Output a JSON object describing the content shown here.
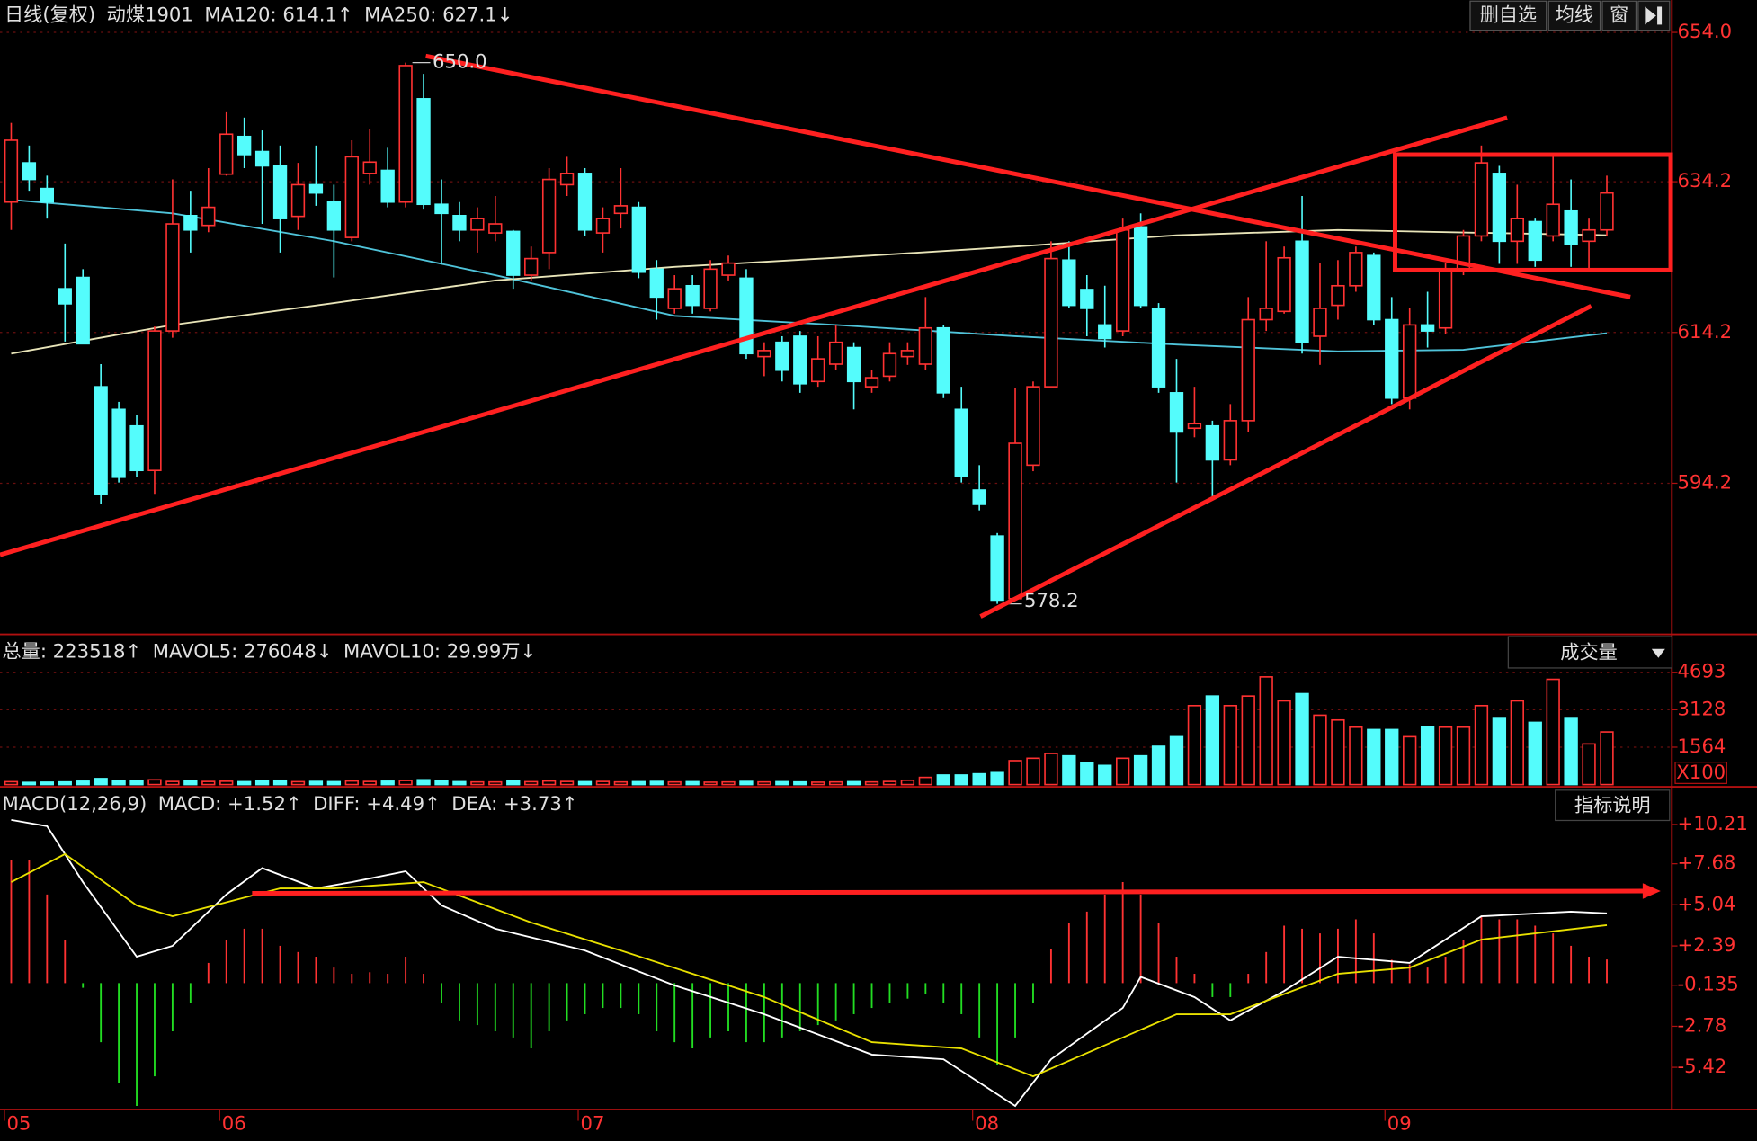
{
  "chart_data": [
    {
      "type": "candlestick",
      "title": "日线(复权)",
      "symbol": "动煤1901",
      "buttons": [
        "删自选",
        "均线",
        "窗"
      ],
      "up_color": "#ff3232",
      "down_color": "#54fcfc",
      "grid": true,
      "ylim": [
        574.6,
        658.3
      ],
      "yticks": [
        594.2,
        614.2,
        634.2,
        {
          "value": 654,
          "label": "654.0"
        }
      ],
      "high_label": "650.0",
      "low_label": "578.2",
      "categories": [
        "05",
        null,
        null,
        null,
        null,
        null,
        null,
        null,
        null,
        null,
        null,
        null,
        "06",
        null,
        null,
        null,
        null,
        null,
        null,
        null,
        null,
        null,
        null,
        null,
        null,
        null,
        null,
        null,
        null,
        null,
        null,
        null,
        "07",
        null,
        null,
        null,
        null,
        null,
        null,
        null,
        null,
        null,
        null,
        null,
        null,
        null,
        null,
        null,
        null,
        null,
        null,
        null,
        null,
        null,
        "08",
        null,
        null,
        null,
        null,
        null,
        null,
        null,
        null,
        null,
        null,
        null,
        null,
        null,
        null,
        null,
        null,
        null,
        null,
        null,
        null,
        null,
        null,
        "09",
        null,
        null,
        null,
        null,
        null,
        null,
        null,
        null,
        null,
        null,
        null,
        null
      ],
      "open": [
        631.5,
        636.7,
        633.3,
        620,
        621.5,
        607,
        604,
        601.8,
        595.9,
        614.4,
        629.7,
        628.4,
        635.2,
        640.2,
        638.2,
        636.3,
        629.6,
        633.8,
        631.5,
        626.8,
        635.3,
        635.7,
        631.5,
        645.2,
        631.2,
        629.7,
        627.8,
        627.4,
        627.6,
        621.8,
        624.8,
        633.8,
        635.3,
        627.4,
        630,
        630.8,
        622.6,
        617.4,
        620.4,
        617.4,
        621.8,
        621.4,
        611,
        612.9,
        613.7,
        607.7,
        610,
        612.2,
        607,
        608.4,
        611,
        610,
        614.8,
        604,
        593.3,
        587.2,
        578.9,
        596.6,
        607,
        623.8,
        619.9,
        615.2,
        614.4,
        628.2,
        617.4,
        606.2,
        601.5,
        601.8,
        597.3,
        602.5,
        615.9,
        617,
        626.3,
        613.7,
        617.8,
        620.4,
        624.4,
        615.9,
        605.5,
        615.2,
        614.8,
        622.6,
        627,
        635.3,
        626.3,
        628.9,
        627,
        630.3,
        626.3,
        627.8
      ],
      "high": [
        642,
        639,
        635,
        626,
        622.6,
        610,
        605,
        603.3,
        615,
        634.5,
        633,
        636,
        643.4,
        642.7,
        641,
        639,
        636.7,
        639,
        633.8,
        639.7,
        641.2,
        638.7,
        650.0,
        648.5,
        634.5,
        631.5,
        630.8,
        632.3,
        627.8,
        625.6,
        636,
        637.5,
        636,
        630.8,
        636,
        631.5,
        623.8,
        621.8,
        621.8,
        623.8,
        624.4,
        622.6,
        612.9,
        613.7,
        614.4,
        613.7,
        615.2,
        612.9,
        609.2,
        612.9,
        612.9,
        618.9,
        615.2,
        607,
        596.6,
        587.6,
        606.9,
        607.7,
        626.3,
        626.3,
        621.8,
        620.4,
        629.3,
        630,
        618.1,
        610.7,
        607,
        602.5,
        604.7,
        618.9,
        626.3,
        625.6,
        632.3,
        623.4,
        623.8,
        625.6,
        624.8,
        618.9,
        617.4,
        619.6,
        623.4,
        627.8,
        639,
        636.3,
        633.8,
        629.3,
        637.5,
        634.5,
        629.3,
        635
      ],
      "low": [
        627.8,
        633,
        629.3,
        613,
        612.7,
        591.4,
        594.3,
        595,
        592.8,
        613.5,
        624.8,
        627.5,
        635,
        636,
        628.6,
        624.8,
        627.8,
        631,
        621.5,
        626.3,
        633.8,
        630.8,
        630.8,
        630.5,
        623.3,
        626.3,
        624.8,
        626.3,
        620,
        621.1,
        622.6,
        632.3,
        627,
        624.8,
        628,
        621.4,
        615.9,
        616.7,
        616.7,
        617,
        621.1,
        610.7,
        608.4,
        607.7,
        606.2,
        607,
        609.2,
        604,
        606.2,
        607.7,
        609.9,
        609.2,
        605.5,
        594.3,
        590.6,
        578.2,
        578.7,
        595.8,
        607,
        617.4,
        613.7,
        612.2,
        613.7,
        617.4,
        606.2,
        594.3,
        600.3,
        592.1,
        596.6,
        601,
        614.4,
        616.7,
        611.4,
        609.9,
        615.9,
        619.6,
        615.2,
        604.7,
        604,
        612.2,
        614,
        621.8,
        626.3,
        623.3,
        623.3,
        622.9,
        626.3,
        622.9,
        622.6,
        627
      ],
      "close": [
        639.7,
        634.5,
        631.5,
        618,
        612.7,
        592.8,
        595,
        595.9,
        614.4,
        628.6,
        627.8,
        630.8,
        640.5,
        637.8,
        636.3,
        629.3,
        633.8,
        632.7,
        627.8,
        637.5,
        636.8,
        631.5,
        649.6,
        631.2,
        630,
        627.8,
        629.3,
        628.6,
        621.8,
        624,
        634.5,
        635.3,
        627.8,
        629.3,
        631,
        622.2,
        618.9,
        620,
        617.8,
        622.6,
        623.4,
        611.4,
        611.8,
        609.2,
        607.4,
        610.7,
        612.9,
        607.7,
        608.2,
        611.4,
        611.8,
        614.8,
        606.2,
        595.1,
        591.4,
        578.7,
        599.5,
        607,
        624,
        617.8,
        617.4,
        613.4,
        627.8,
        617.8,
        607,
        601,
        602.1,
        597.3,
        602.5,
        615.9,
        617.4,
        624.1,
        612.9,
        617.4,
        620.4,
        624.8,
        615.9,
        605.5,
        615.2,
        614.4,
        622.6,
        627,
        636.7,
        626.3,
        629.3,
        623.8,
        631.2,
        625.9,
        627.8,
        632.7
      ],
      "series": [
        {
          "name": "MA120: 614.1↑",
          "color": "#4fc3d9",
          "x": [
            0,
            9,
            18,
            27,
            37,
            46,
            56,
            65,
            74,
            81,
            89
          ],
          "values": [
            631.8,
            630,
            626.3,
            621.8,
            616.4,
            615.2,
            613.7,
            612.6,
            611.7,
            611.9,
            614.1
          ]
        },
        {
          "name": "MA250: 627.1↓",
          "color": "#e8e4b8",
          "x": [
            0,
            9,
            18,
            27,
            37,
            46,
            56,
            65,
            74,
            89
          ],
          "values": [
            611.4,
            615.2,
            618.1,
            621.1,
            622.9,
            624.1,
            625.6,
            627.1,
            627.8,
            627.1
          ]
        }
      ]
    },
    {
      "type": "bar",
      "up_color": "#ff3232",
      "down_color": "#54fcfc",
      "grid": true,
      "legend": [
        {
          "text": "总量: 223518↑",
          "color": "#ff3232"
        },
        {
          "text": "MAVOL5: 276048↓",
          "color": "#e8e000"
        },
        {
          "text": "MAVOL10: 29.99万↓",
          "color": "#ffffff"
        }
      ],
      "selector": "成交量",
      "unit_label": "X100",
      "ylim": [
        0,
        4920
      ],
      "yticks": [
        1564,
        3128,
        4693
      ],
      "values": [
        120,
        90,
        100,
        110,
        140,
        250,
        160,
        150,
        200,
        130,
        150,
        130,
        140,
        120,
        160,
        180,
        120,
        130,
        120,
        150,
        130,
        140,
        170,
        200,
        150,
        120,
        110,
        110,
        160,
        120,
        150,
        130,
        120,
        130,
        110,
        120,
        130,
        110,
        120,
        100,
        110,
        130,
        110,
        120,
        110,
        100,
        110,
        120,
        110,
        130,
        180,
        300,
        400,
        400,
        450,
        500,
        1000,
        1100,
        1300,
        1200,
        900,
        800,
        1100,
        1200,
        1600,
        2000,
        3300,
        3700,
        3300,
        3700,
        4500,
        3500,
        3800,
        2900,
        2700,
        2400,
        2300,
        2300,
        2000,
        2400,
        2400,
        2400,
        3300,
        2800,
        3500,
        2600,
        4400,
        2800,
        1700,
        2200
      ]
    },
    {
      "type": "macd",
      "up_color": "#ff3232",
      "down_color": "#22dd22",
      "grid": false,
      "legend": [
        {
          "text": "MACD(12,26,9)",
          "color": "#ffffff"
        },
        {
          "text": "MACD: +1.52↑",
          "color": "#ff3232"
        },
        {
          "text": "DIFF: +4.49↑",
          "color": "#ffffff"
        },
        {
          "text": "DEA: +3.73↑",
          "color": "#e8e000"
        }
      ],
      "button": "指标说明",
      "ylim": [
        -8.14,
        12.27
      ],
      "yticks": [
        -5.42,
        -2.78,
        -0.135,
        {
          "value": 2.39,
          "label": "+2.39"
        },
        {
          "value": 5.04,
          "label": "+5.04"
        },
        {
          "value": 7.68,
          "label": "+7.68"
        },
        {
          "value": 10.21,
          "label": "+10.21"
        }
      ],
      "values": [
        7.9,
        7.9,
        5.7,
        2.8,
        -0.3,
        -3.8,
        -6.4,
        -7.9,
        -6,
        -3.1,
        -1.3,
        1.3,
        2.8,
        3.5,
        3.5,
        2.4,
        2,
        1.7,
        1,
        0.6,
        0.7,
        0.6,
        1.7,
        0.6,
        -1.3,
        -2.4,
        -2.7,
        -3.1,
        -3.5,
        -4.2,
        -3.1,
        -2.4,
        -2,
        -1.6,
        -1.6,
        -2,
        -3.1,
        -3.8,
        -4.2,
        -3.5,
        -3.1,
        -3.8,
        -3.8,
        -3.5,
        -3.1,
        -2.7,
        -2.4,
        -2,
        -1.6,
        -1.3,
        -1,
        -0.7,
        -1.3,
        -2,
        -3.5,
        -5.3,
        -3.5,
        -1.3,
        2.2,
        3.9,
        4.6,
        5.7,
        6.5,
        5.7,
        3.9,
        1.7,
        0.6,
        -0.9,
        -0.9,
        0.6,
        2,
        3.7,
        3.5,
        3.2,
        3.5,
        4.1,
        3.2,
        1.5,
        1.2,
        1,
        1.7,
        2.8,
        4.3,
        4.1,
        4.1,
        3.7,
        3.2,
        2.4,
        1.7,
        1.52
      ],
      "lines": [
        {
          "color": "#ffffff",
          "x": [
            0,
            2,
            4,
            7,
            9,
            12,
            14,
            17,
            19,
            22,
            24,
            27,
            32,
            37,
            42,
            48,
            52,
            56,
            58,
            62,
            63,
            66,
            68,
            71,
            74,
            78,
            82,
            87,
            89
          ],
          "values": [
            10.5,
            10.1,
            6.5,
            1.7,
            2.4,
            5.7,
            7.4,
            6.1,
            6.5,
            7.2,
            5,
            3.5,
            2.1,
            -0.15,
            -2,
            -4.6,
            -4.9,
            -7.9,
            -4.9,
            -1.6,
            0.4,
            -0.9,
            -2.4,
            -0.5,
            1.7,
            1.3,
            4.3,
            4.6,
            4.49
          ]
        },
        {
          "color": "#e8e000",
          "x": [
            0,
            3,
            7,
            9,
            15,
            18,
            23,
            29,
            34,
            42,
            48,
            53,
            57,
            62,
            65,
            68,
            74,
            78,
            82,
            89
          ],
          "values": [
            6.5,
            8.3,
            5,
            4.3,
            6.1,
            6.1,
            6.5,
            3.9,
            2.1,
            -0.9,
            -3.8,
            -4.2,
            -6,
            -3.5,
            -2,
            -2,
            0.6,
            1,
            2.8,
            3.73
          ]
        }
      ]
    }
  ]
}
